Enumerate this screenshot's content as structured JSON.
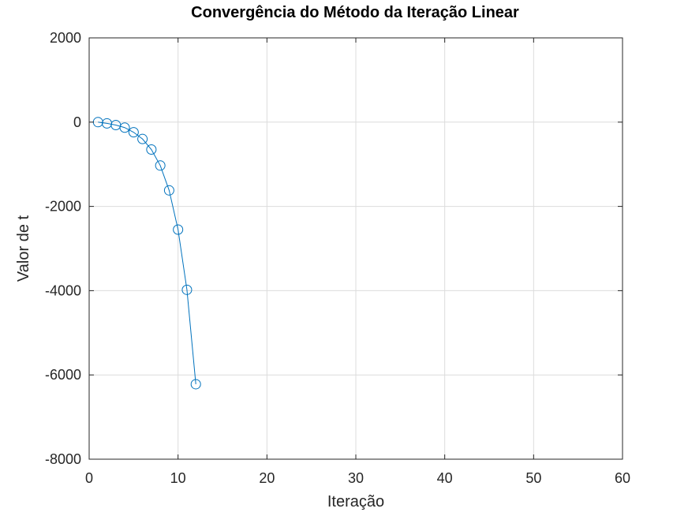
{
  "chart_data": {
    "type": "line",
    "title": "Convergência do Método da Iteração Linear",
    "xlabel": "Iteração",
    "ylabel": "Valor de t",
    "xlim": [
      0,
      60
    ],
    "ylim": [
      -8000,
      2000
    ],
    "xticks": [
      0,
      10,
      20,
      30,
      40,
      50,
      60
    ],
    "yticks": [
      -8000,
      -6000,
      -4000,
      -2000,
      0,
      2000
    ],
    "xtick_labels": [
      "0",
      "10",
      "20",
      "30",
      "40",
      "50",
      "60"
    ],
    "ytick_labels": [
      "-8000",
      "-6000",
      "-4000",
      "-2000",
      "0",
      "2000"
    ],
    "grid": true,
    "series": [
      {
        "name": "t",
        "marker": "circle",
        "color": "#0072bd",
        "x": [
          1,
          2,
          3,
          4,
          5,
          6,
          7,
          8,
          9,
          10,
          11,
          12
        ],
        "values": [
          0,
          -30,
          -70,
          -130,
          -240,
          -400,
          -650,
          -1030,
          -1620,
          -2550,
          -3980,
          -6220
        ]
      }
    ]
  }
}
